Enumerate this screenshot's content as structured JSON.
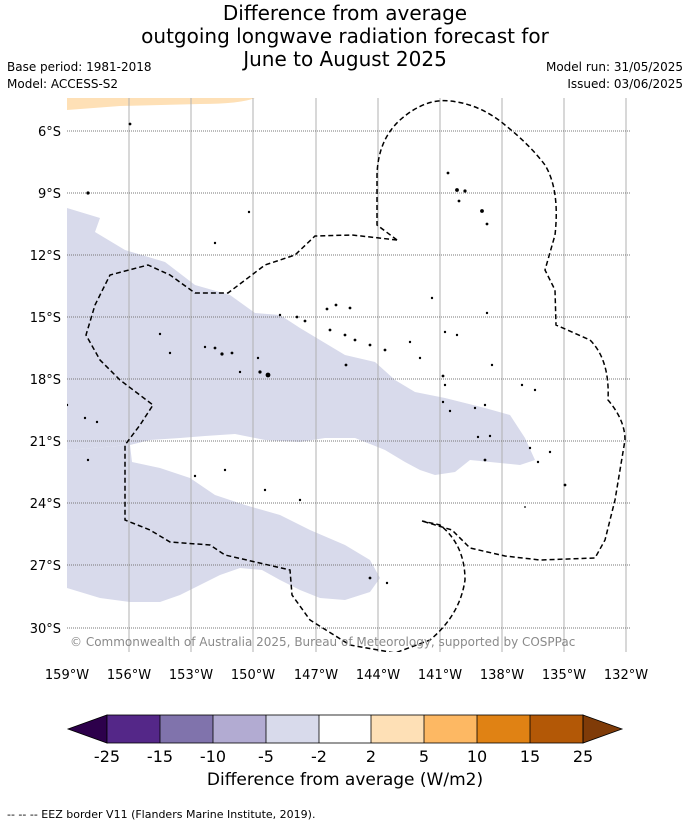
{
  "title": {
    "line1": "Difference from average",
    "line2": "outgoing longwave radiation forecast for",
    "line3": "June to August 2025"
  },
  "meta": {
    "base_period": "Base period: 1981-2018",
    "model": "Model: ACCESS-S2",
    "model_run": "Model run: 31/05/2025",
    "issued": "Issued: 03/06/2025"
  },
  "map": {
    "lat_labels": [
      "6°S",
      "9°S",
      "12°S",
      "15°S",
      "18°S",
      "21°S",
      "24°S",
      "27°S",
      "30°S"
    ],
    "lon_labels": [
      "159°W",
      "156°W",
      "153°W",
      "150°W",
      "147°W",
      "144°W",
      "141°W",
      "138°W",
      "135°W",
      "132°W"
    ],
    "copyright": "© Commonwealth of Australia 2025, Bureau of Meteorology, supported by COSPPac"
  },
  "colorbar": {
    "label": "Difference from average (W/m2)",
    "ticks": [
      "-25",
      "-15",
      "-10",
      "-5",
      "-2",
      "2",
      "5",
      "10",
      "15",
      "25"
    ],
    "colors": [
      "#2d004b",
      "#542788",
      "#8073ac",
      "#b2abd2",
      "#d8daeb",
      "#ffffff",
      "#fee0b6",
      "#fdb863",
      "#e08214",
      "#b35806",
      "#7f3b08"
    ]
  },
  "footer": "--  --  -- EEZ border V11 (Flanders Marine Institute, 2019)."
}
